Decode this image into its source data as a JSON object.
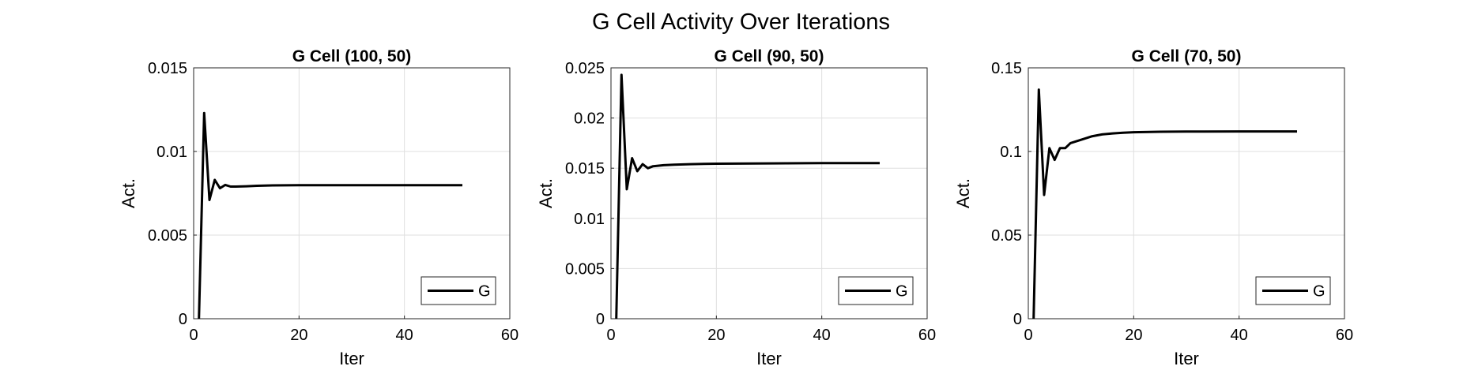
{
  "figure_title": "G Cell Activity Over Iterations",
  "chart_data": [
    {
      "type": "line",
      "title": "G Cell (100, 50)",
      "xlabel": "Iter",
      "ylabel": "Act.",
      "xlim": [
        0,
        60
      ],
      "ylim": [
        0,
        0.015
      ],
      "xticks": [
        0,
        20,
        40,
        60
      ],
      "yticks": [
        0,
        0.005,
        0.01,
        0.015
      ],
      "ytick_labels": [
        "0",
        "0.005",
        "0.01",
        "0.015"
      ],
      "grid": true,
      "legend_position": "bottom-right",
      "line_color": "#000000",
      "series": [
        {
          "name": "G",
          "x": [
            1,
            2,
            3,
            4,
            5,
            6,
            7,
            8,
            10,
            12,
            15,
            20,
            30,
            40,
            51
          ],
          "y": [
            0,
            0.0123,
            0.0071,
            0.0083,
            0.0078,
            0.008,
            0.0079,
            0.0079,
            0.00792,
            0.00795,
            0.00797,
            0.00798,
            0.00798,
            0.00798,
            0.00798
          ]
        }
      ]
    },
    {
      "type": "line",
      "title": "G Cell (90, 50)",
      "xlabel": "Iter",
      "ylabel": "Act.",
      "xlim": [
        0,
        60
      ],
      "ylim": [
        0,
        0.025
      ],
      "xticks": [
        0,
        20,
        40,
        60
      ],
      "yticks": [
        0,
        0.005,
        0.01,
        0.015,
        0.02,
        0.025
      ],
      "ytick_labels": [
        "0",
        "0.005",
        "0.01",
        "0.015",
        "0.02",
        "0.025"
      ],
      "grid": true,
      "legend_position": "bottom-right",
      "line_color": "#000000",
      "series": [
        {
          "name": "G",
          "x": [
            1,
            2,
            3,
            4,
            5,
            6,
            7,
            8,
            10,
            12,
            15,
            20,
            30,
            40,
            51
          ],
          "y": [
            0,
            0.0243,
            0.0129,
            0.016,
            0.0147,
            0.0154,
            0.015,
            0.0152,
            0.0153,
            0.01535,
            0.0154,
            0.01545,
            0.01548,
            0.0155,
            0.0155
          ]
        }
      ]
    },
    {
      "type": "line",
      "title": "G Cell (70, 50)",
      "xlabel": "Iter",
      "ylabel": "Act.",
      "xlim": [
        0,
        60
      ],
      "ylim": [
        0,
        0.15
      ],
      "xticks": [
        0,
        20,
        40,
        60
      ],
      "yticks": [
        0,
        0.05,
        0.1,
        0.15
      ],
      "ytick_labels": [
        "0",
        "0.05",
        "0.1",
        "0.15"
      ],
      "grid": true,
      "legend_position": "bottom-right",
      "line_color": "#000000",
      "series": [
        {
          "name": "G",
          "x": [
            1,
            2,
            3,
            4,
            5,
            6,
            7,
            8,
            9,
            10,
            12,
            14,
            16,
            18,
            20,
            25,
            30,
            40,
            51
          ],
          "y": [
            0,
            0.137,
            0.074,
            0.102,
            0.095,
            0.102,
            0.102,
            0.105,
            0.106,
            0.107,
            0.109,
            0.1102,
            0.1108,
            0.1112,
            0.1115,
            0.1118,
            0.1119,
            0.112,
            0.112
          ]
        }
      ]
    }
  ]
}
